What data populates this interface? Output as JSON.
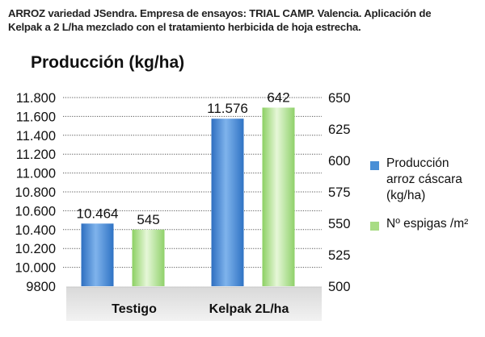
{
  "header": {
    "line1": "ARROZ variedad JSendra.  Empresa de ensayos: TRIAL CAMP. Valencia. Aplicación de",
    "line2": "Kelpak a 2 L/ha mezclado con el tratamiento herbicida de hoja estrecha."
  },
  "chart_data": {
    "type": "bar",
    "title": "Producción (kg/ha)",
    "categories": [
      "Testigo",
      "Kelpak 2L/ha"
    ],
    "series": [
      {
        "name": "Producción arroz cáscara (kg/ha)",
        "axis": "left",
        "color": "#4a8fd6",
        "values": [
          10464,
          11576
        ],
        "labels": [
          "10.464",
          "11.576"
        ]
      },
      {
        "name": "Nº espigas /m²",
        "axis": "right",
        "color": "#a8dc84",
        "values": [
          545,
          642
        ],
        "labels": [
          "545",
          "642"
        ]
      }
    ],
    "left_axis": {
      "ylim": [
        9800,
        11800
      ],
      "ticks": [
        9800,
        10000,
        10200,
        10400,
        10600,
        10800,
        11000,
        11200,
        11400,
        11600,
        11800
      ],
      "tick_labels": [
        "9800",
        "10.000",
        "10.200",
        "10.400",
        "10.600",
        "10.800",
        "11.000",
        "11.200",
        "11.400",
        "11.600",
        "11.800"
      ]
    },
    "right_axis": {
      "ylim": [
        500,
        650
      ],
      "ticks": [
        500,
        525,
        550,
        575,
        600,
        625,
        650
      ],
      "tick_labels": [
        "500",
        "525",
        "550",
        "575",
        "600",
        "625",
        "650"
      ]
    },
    "grid": true,
    "legend_position": "right"
  },
  "legend": {
    "items": [
      {
        "line1": "Producción",
        "line2": "arroz cáscara",
        "line3": "(kg/ha)",
        "color": "#4a8fd6"
      },
      {
        "line1": "Nº espigas /m²",
        "color": "#a8dc84"
      }
    ]
  }
}
